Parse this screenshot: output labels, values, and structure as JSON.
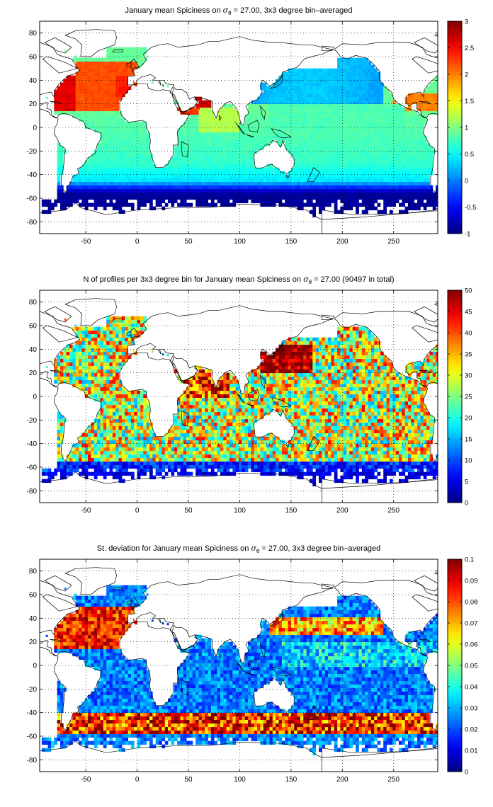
{
  "chart_data": [
    {
      "type": "heatmap",
      "title_prefix": "January mean Spiciness on ",
      "title_sigma": "σ",
      "title_sub": "θ",
      "title_suffix": " = 27.00, 3x3 degree bin–averaged",
      "colorbar": {
        "min": -1,
        "max": 3,
        "ticks": [
          3,
          2.5,
          2,
          1.5,
          1,
          0.5,
          0,
          -0.5,
          -1
        ]
      },
      "x_ticks": [
        -50,
        0,
        50,
        100,
        150,
        200,
        250
      ],
      "y_ticks": [
        80,
        60,
        40,
        20,
        0,
        -20,
        -40,
        -60,
        -80
      ],
      "xlim": [
        -95,
        293
      ],
      "ylim": [
        -90,
        90
      ],
      "grid": true,
      "xlabel": "",
      "ylabel": ""
    },
    {
      "type": "heatmap",
      "title_prefix": "N of profiles per 3x3 degree bin for January mean Spiciness on ",
      "title_sigma": "σ",
      "title_sub": "θ",
      "title_suffix": " = 27.00 (90497 in total)",
      "colorbar": {
        "min": 0,
        "max": 50,
        "ticks": [
          50,
          45,
          40,
          35,
          30,
          25,
          20,
          15,
          10,
          5,
          0
        ]
      },
      "x_ticks": [
        -50,
        0,
        50,
        100,
        150,
        200,
        250
      ],
      "y_ticks": [
        80,
        60,
        40,
        20,
        0,
        -20,
        -40,
        -60,
        -80
      ],
      "xlim": [
        -95,
        293
      ],
      "ylim": [
        -90,
        90
      ],
      "grid": true,
      "xlabel": "",
      "ylabel": ""
    },
    {
      "type": "heatmap",
      "title_prefix": "St. deviation for January mean Spiciness on ",
      "title_sigma": "σ",
      "title_sub": "θ",
      "title_suffix": " = 27.00, 3x3 degree bin–averaged",
      "colorbar": {
        "min": 0,
        "max": 0.1,
        "ticks": [
          0.1,
          0.09,
          0.08,
          0.07,
          0.06,
          0.05,
          0.04,
          0.03,
          0.02,
          0.01,
          0
        ]
      },
      "x_ticks": [
        -50,
        0,
        50,
        100,
        150,
        200,
        250
      ],
      "y_ticks": [
        80,
        60,
        40,
        20,
        0,
        -20,
        -40,
        -60,
        -80
      ],
      "xlim": [
        -95,
        293
      ],
      "ylim": [
        -90,
        90
      ],
      "grid": true,
      "xlabel": "",
      "ylabel": ""
    }
  ],
  "colormap": "jet"
}
